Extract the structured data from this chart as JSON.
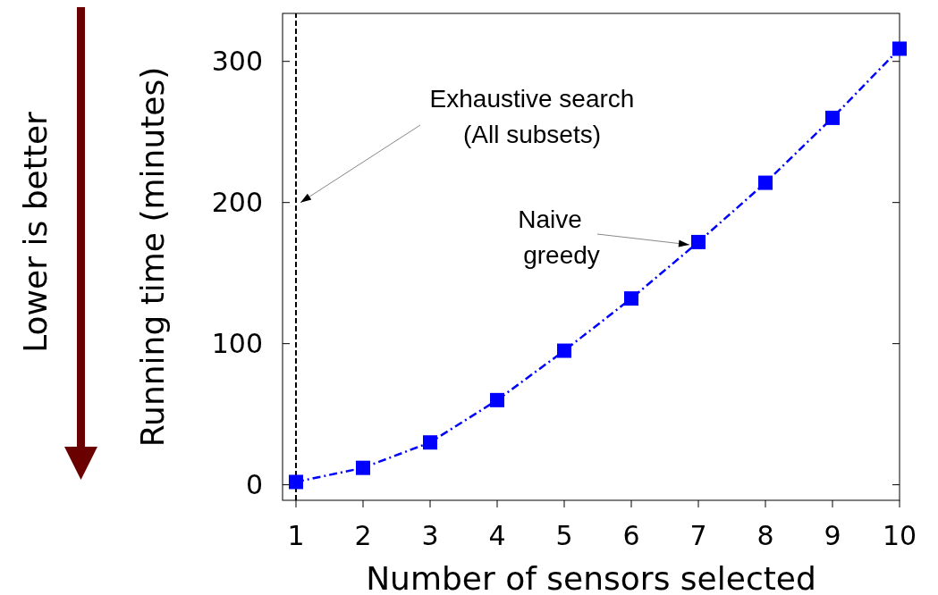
{
  "chart_data": {
    "type": "line",
    "xlabel": "Number of sensors selected",
    "ylabel": "Running time (minutes)",
    "x": [
      1,
      2,
      3,
      4,
      5,
      6,
      7,
      8,
      9,
      10
    ],
    "series": [
      {
        "name": "Naive greedy",
        "color": "#0000ff",
        "values": [
          2,
          12,
          30,
          60,
          95,
          132,
          172,
          214,
          260,
          309
        ]
      }
    ],
    "xlim": [
      0.8,
      10
    ],
    "xticks": [
      1,
      2,
      3,
      4,
      5,
      6,
      7,
      8,
      9,
      10
    ],
    "ylim": [
      -11,
      334
    ],
    "yticks": [
      0,
      100,
      200,
      300
    ],
    "marker": "square",
    "line_style": "dashed",
    "grid": false,
    "ref_lines": [
      {
        "axis": "x",
        "value": 1,
        "label": "Exhaustive search\n(All subsets)",
        "color": "#000000",
        "line_style": "dashed"
      }
    ],
    "annotations": [
      "Lower is better"
    ]
  }
}
